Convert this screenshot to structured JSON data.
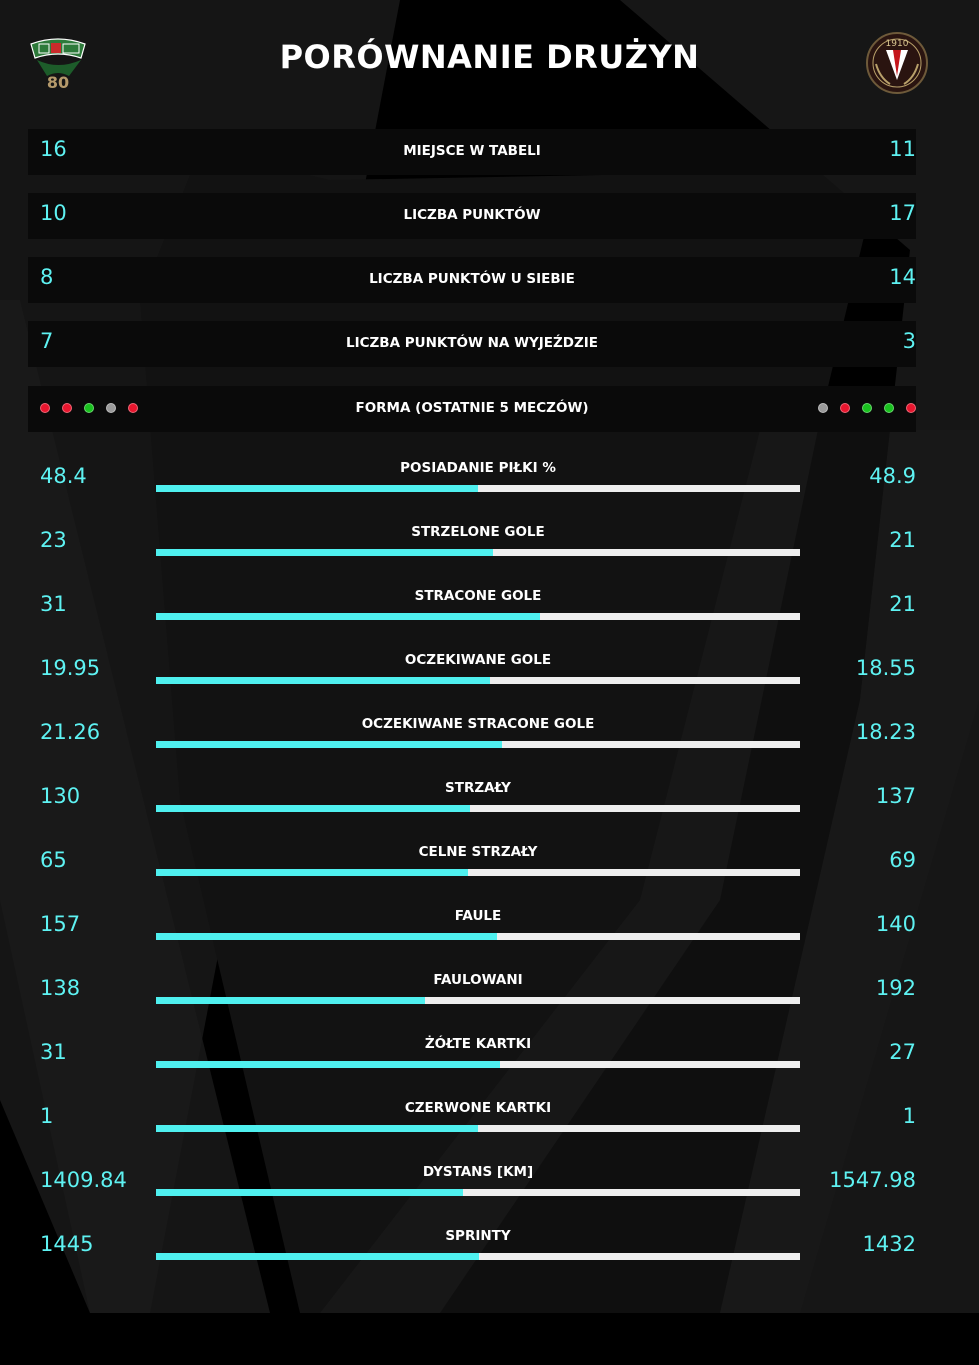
{
  "title": "PORÓWNANIE DRUŻYN",
  "colors": {
    "accent": "#5ef2f2",
    "bar_fill": "#4ff0ef",
    "bar_track": "#eeeeee",
    "win": "#19c21f",
    "loss": "#e8162e",
    "draw": "#9a9a9a"
  },
  "teams": {
    "home": {
      "logo_icon": "lechia-gdansk-crest-icon",
      "logo_text": "KS LECHIA 80"
    },
    "away": {
      "logo_icon": "widzew-lodz-crest-icon",
      "logo_text": "1910"
    }
  },
  "summary_rows": [
    {
      "label": "MIEJSCE W TABELI",
      "home": "16",
      "away": "11"
    },
    {
      "label": "LICZBA PUNKTÓW",
      "home": "10",
      "away": "17"
    },
    {
      "label": "LICZBA PUNKTÓW U SIEBIE",
      "home": "8",
      "away": "14"
    },
    {
      "label": "LICZBA PUNKTÓW NA WYJEŹDZIE",
      "home": "7",
      "away": "3"
    }
  ],
  "form": {
    "label": "FORMA (OSTATNIE 5 MECZÓW)",
    "home": [
      "loss",
      "loss",
      "win",
      "draw",
      "loss"
    ],
    "away": [
      "draw",
      "loss",
      "win",
      "win",
      "loss"
    ]
  },
  "bar_rows": [
    {
      "label": "POSIADANIE PIŁKI %",
      "home": "48.4",
      "away": "48.9",
      "share": 0.5
    },
    {
      "label": "STRZELONE GOLE",
      "home": "23",
      "away": "21",
      "share": 0.523
    },
    {
      "label": "STRACONE GOLE",
      "home": "31",
      "away": "21",
      "share": 0.596
    },
    {
      "label": "OCZEKIWANE GOLE",
      "home": "19.95",
      "away": "18.55",
      "share": 0.518
    },
    {
      "label": "OCZEKIWANE STRACONE GOLE",
      "home": "21.26",
      "away": "18.23",
      "share": 0.538
    },
    {
      "label": "STRZAŁY",
      "home": "130",
      "away": "137",
      "share": 0.487
    },
    {
      "label": "CELNE STRZAŁY",
      "home": "65",
      "away": "69",
      "share": 0.485
    },
    {
      "label": "FAULE",
      "home": "157",
      "away": "140",
      "share": 0.529
    },
    {
      "label": "FAULOWANI",
      "home": "138",
      "away": "192",
      "share": 0.418
    },
    {
      "label": "ŻÓŁTE KARTKI",
      "home": "31",
      "away": "27",
      "share": 0.534
    },
    {
      "label": "CZERWONE KARTKI",
      "home": "1",
      "away": "1",
      "share": 0.5
    },
    {
      "label": "DYSTANS [KM]",
      "home": "1409.84",
      "away": "1547.98",
      "share": 0.477
    },
    {
      "label": "SPRINTY",
      "home": "1445",
      "away": "1432",
      "share": 0.502
    }
  ]
}
